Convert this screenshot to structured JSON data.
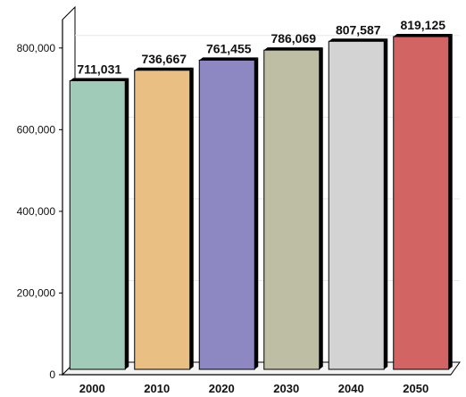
{
  "chart_data": {
    "type": "bar",
    "title": "",
    "xlabel": "",
    "ylabel": "",
    "categories": [
      "2000",
      "2010",
      "2020",
      "2030",
      "2040",
      "2050"
    ],
    "values": [
      711031,
      736667,
      761455,
      786069,
      807587,
      819125
    ],
    "value_labels": [
      "711,031",
      "736,667",
      "761,455",
      "786,069",
      "807,587",
      "819,125"
    ],
    "ylim": [
      0,
      900000
    ],
    "yticks": [
      0,
      200000,
      400000,
      600000,
      800000
    ],
    "ytick_labels": [
      "0",
      "200,000",
      "400,000",
      "600,000",
      "800,000"
    ],
    "colors": [
      "#9fcbb8",
      "#e9bf84",
      "#8e88c2",
      "#bebea4",
      "#d3d3d3",
      "#d26564"
    ],
    "grid": true,
    "legend": "none",
    "style": "3d-bar"
  }
}
